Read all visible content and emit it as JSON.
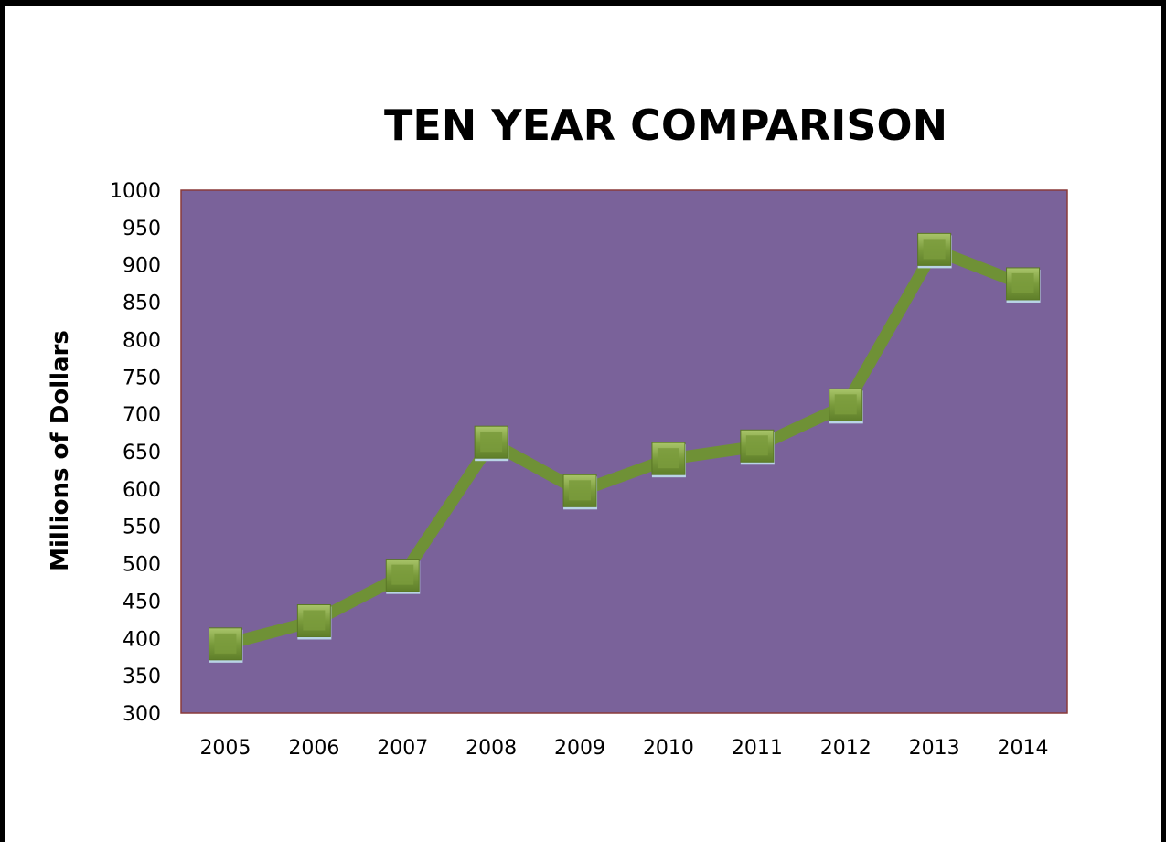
{
  "chart_data": {
    "type": "line",
    "title": "TEN YEAR COMPARISON",
    "xlabel": "",
    "ylabel": "Millions of Dollars",
    "categories": [
      "2005",
      "2006",
      "2007",
      "2008",
      "2009",
      "2010",
      "2011",
      "2012",
      "2013",
      "2014"
    ],
    "series": [
      {
        "values": [
          392,
          423,
          484,
          662,
          597,
          640,
          657,
          712,
          920,
          874
        ]
      }
    ],
    "ylim": [
      300,
      1000
    ],
    "y_ticks": [
      "1000",
      "950",
      "900",
      "850",
      "800",
      "750",
      "700",
      "650",
      "600",
      "550",
      "500",
      "450",
      "400",
      "350",
      "300"
    ],
    "grid": false,
    "legend": "none",
    "marker": "square",
    "colors": {
      "plot_background": "#7a629a",
      "line": "#6f9136",
      "marker_fill": "#7a9b3c",
      "marker_highlight": "#a9c56a",
      "marker_edge": "#b9d4e6",
      "plot_border": "#8a3a3a"
    }
  }
}
